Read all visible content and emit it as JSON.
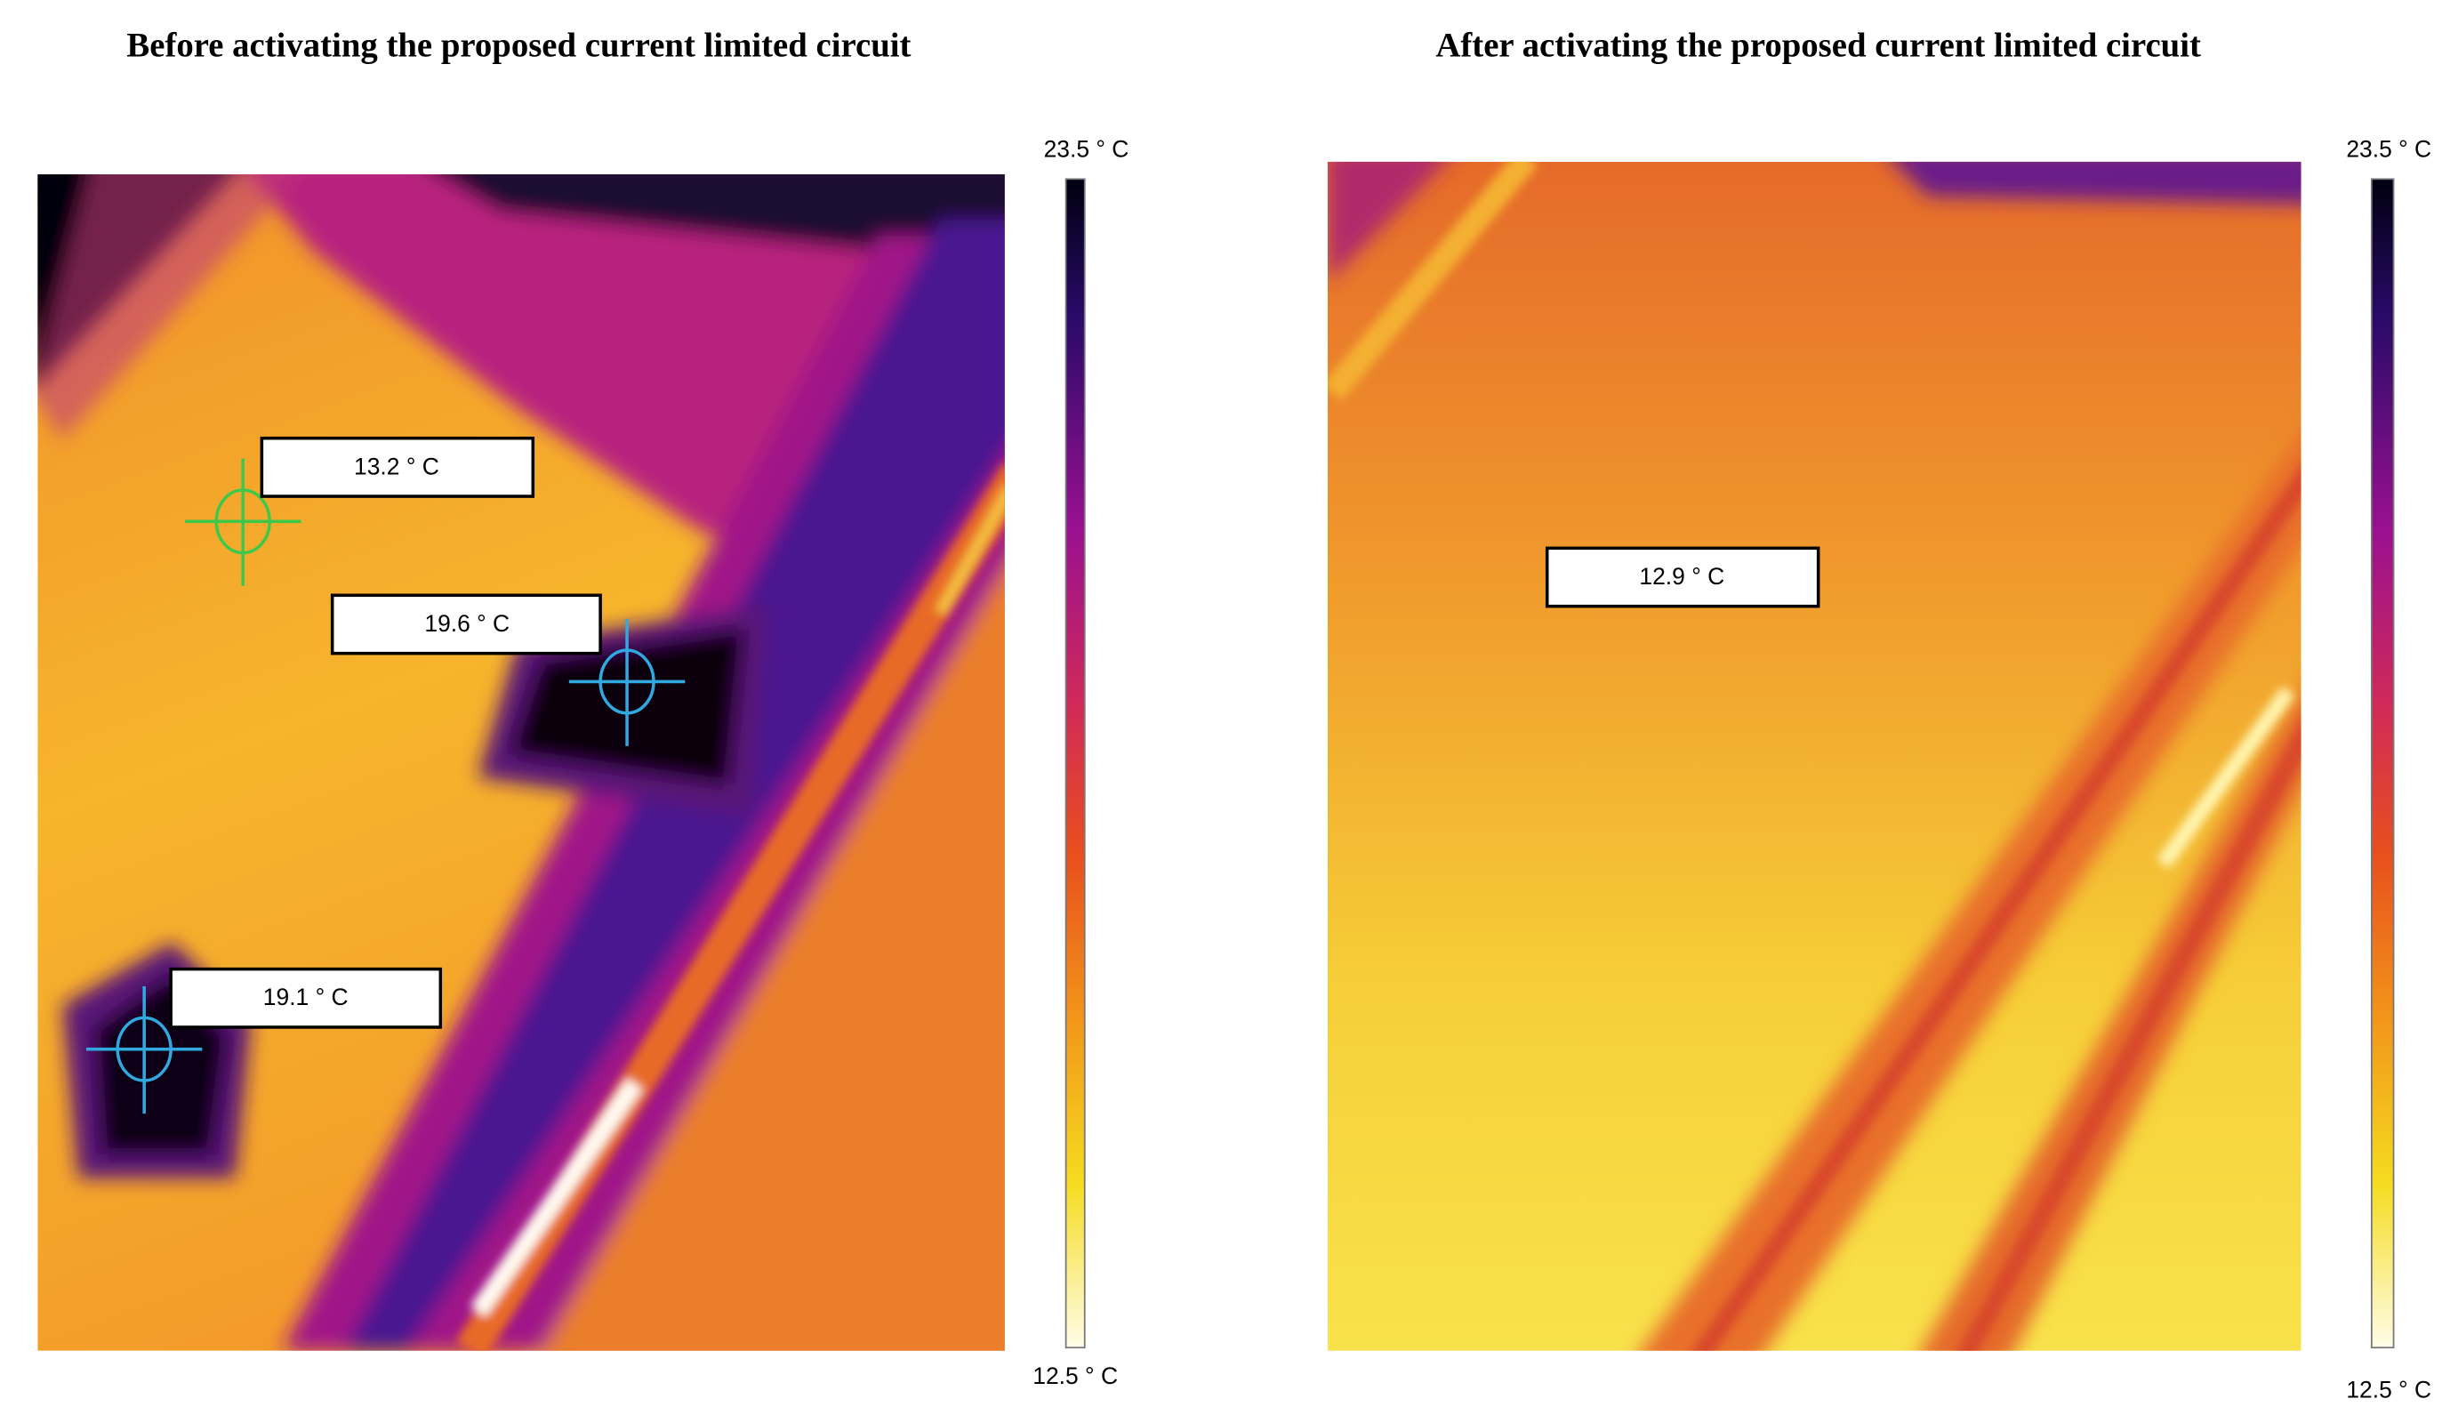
{
  "panels": [
    {
      "title": "Before activating the proposed current limited circuit",
      "scale": {
        "max": "23.5 ° C",
        "min": "12.5 ° C"
      },
      "spots": [
        "13.2 ° C",
        "19.6 ° C",
        "19.1 ° C"
      ]
    },
    {
      "title": "After activating the proposed current limited circuit",
      "scale": {
        "max": "23.5 ° C",
        "min": "12.5 ° C"
      },
      "spots": [
        "12.9 ° C"
      ]
    }
  ]
}
